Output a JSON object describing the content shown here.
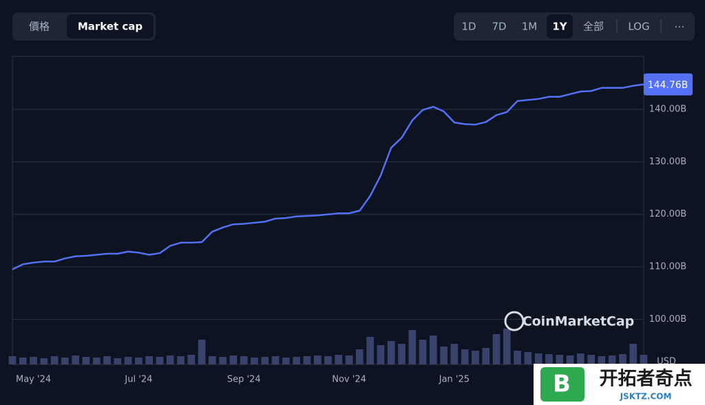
{
  "chart_data": {
    "type": "line",
    "toggles": [
      "價格",
      "Market cap"
    ],
    "active_toggle": 1,
    "ranges": [
      "1D",
      "7D",
      "1M",
      "1Y",
      "全部",
      "LOG",
      "⋯"
    ],
    "active_range": 3,
    "watermark": "CoinMarketCap",
    "overlay": {
      "title": "开拓者奇点",
      "subtitle": "JSKTZ.COM"
    },
    "y2_label": "USD",
    "categories": [
      null,
      null,
      "May '24",
      null,
      null,
      null,
      null,
      null,
      null,
      null,
      null,
      null,
      "Jul '24",
      null,
      null,
      null,
      null,
      null,
      null,
      null,
      null,
      null,
      "Sep '24",
      null,
      null,
      null,
      null,
      null,
      null,
      null,
      null,
      null,
      "Nov '24",
      null,
      null,
      null,
      null,
      null,
      null,
      null,
      null,
      null,
      "Jan '25",
      null,
      null,
      null,
      null,
      null,
      null,
      null,
      null,
      null,
      null,
      null,
      null,
      null,
      null,
      null,
      null,
      null,
      null
    ],
    "series": [
      {
        "name": "Market cap",
        "color": "#5470f5",
        "values": [
          109.5,
          110.5,
          110.8,
          111.0,
          111.0,
          111.6,
          112.0,
          112.1,
          112.3,
          112.5,
          112.5,
          112.9,
          112.7,
          112.3,
          112.6,
          114.0,
          114.6,
          114.6,
          114.7,
          116.7,
          117.5,
          118.1,
          118.2,
          118.4,
          118.6,
          119.2,
          119.3,
          119.6,
          119.7,
          119.8,
          120.0,
          120.2,
          120.2,
          120.7,
          123.5,
          127.4,
          132.7,
          134.6,
          137.9,
          139.9,
          140.5,
          139.6,
          137.5,
          137.2,
          137.1,
          137.6,
          138.9,
          139.5,
          141.6,
          141.8,
          142.0,
          142.4,
          142.4,
          142.9,
          143.4,
          143.5,
          144.1,
          144.1,
          144.1,
          144.5,
          144.76
        ],
        "value_labels": {
          "60": "144.76B"
        }
      },
      {
        "name": "Volume",
        "color": "#39426a",
        "axis": "y2",
        "values": [
          12,
          10,
          11,
          9,
          12,
          10,
          13,
          11,
          10,
          12,
          9,
          11,
          10,
          12,
          11,
          13,
          12,
          14,
          36,
          12,
          11,
          13,
          12,
          10,
          11,
          12,
          10,
          11,
          12,
          13,
          12,
          14,
          13,
          22,
          40,
          28,
          34,
          30,
          50,
          36,
          42,
          26,
          30,
          22,
          20,
          24,
          44,
          52,
          20,
          18,
          16,
          15,
          14,
          13,
          16,
          14,
          12,
          13,
          15,
          30,
          14
        ]
      }
    ],
    "ylim": [
      91.4,
      150.1
    ],
    "yticks": [
      {
        "value": 100,
        "label": "100.00B"
      },
      {
        "value": 110,
        "label": "110.00B"
      },
      {
        "value": 120,
        "label": "120.00B"
      },
      {
        "value": 130,
        "label": "130.00B"
      },
      {
        "value": 140,
        "label": "140.00B"
      }
    ],
    "y2lim": [
      0,
      100
    ],
    "grid": true
  }
}
